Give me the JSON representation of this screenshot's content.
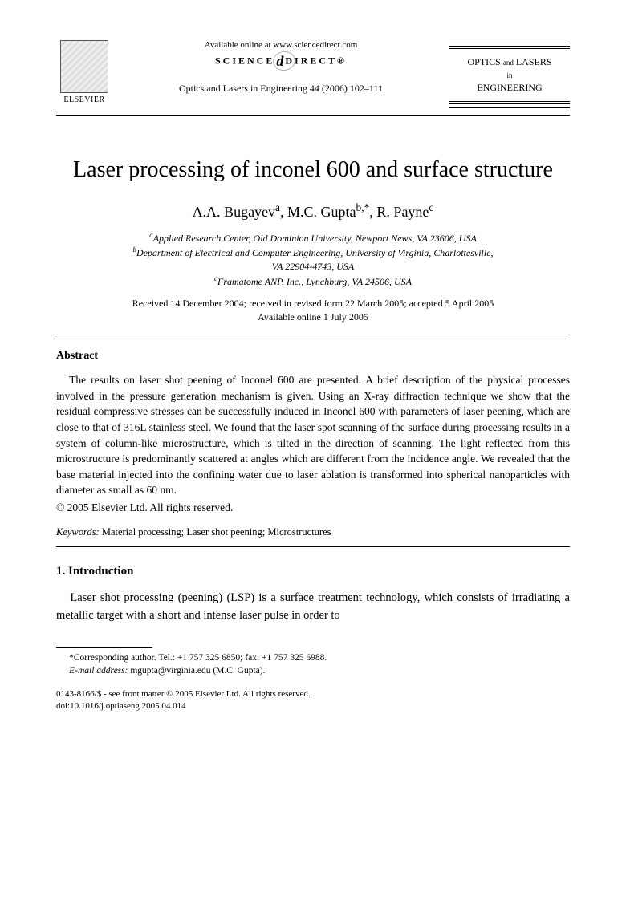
{
  "header": {
    "publisher": "ELSEVIER",
    "available_online": "Available online at www.sciencedirect.com",
    "science_direct_left": "SCIENCE",
    "science_direct_right": "DIRECT®",
    "journal_ref": "Optics and Lasers in Engineering 44 (2006) 102–111",
    "journal_box_line1": "OPTICS",
    "journal_box_and": "and",
    "journal_box_line1b": "LASERS",
    "journal_box_in": "in",
    "journal_box_line2": "ENGINEERING"
  },
  "title": "Laser processing of inconel 600 and surface structure",
  "authors_html": "A.A. Bugayev<sup>a</sup>, M.C. Gupta<sup>b,*</sup>, R. Payne<sup>c</sup>",
  "authors_plain": "A.A. Bugayeva, M.C. Guptab,*, R. Paynec",
  "affiliations": {
    "a": "aApplied Research Center, Old Dominion University, Newport News, VA 23606, USA",
    "b": "bDepartment of Electrical and Computer Engineering, University of Virginia, Charlottesville, VA 22904-4743, USA",
    "c": "cFramatome ANP, Inc., Lynchburg, VA 24506, USA"
  },
  "dates": {
    "received": "Received 14 December 2004; received in revised form 22 March 2005; accepted 5 April 2005",
    "online": "Available online 1 July 2005"
  },
  "abstract": {
    "heading": "Abstract",
    "body": "The results on laser shot peening of Inconel 600 are presented. A brief description of the physical processes involved in the pressure generation mechanism is given. Using an X-ray diffraction technique we show that the residual compressive stresses can be successfully induced in Inconel 600 with parameters of laser peening, which are close to that of 316L stainless steel. We found that the laser spot scanning of the surface during processing results in a system of column-like microstructure, which is tilted in the direction of scanning. The light reflected from this microstructure is predominantly scattered at angles which are different from the incidence angle. We revealed that the base material injected into the confining water due to laser ablation is transformed into spherical nanoparticles with diameter as small as 60 nm.",
    "copyright": "© 2005 Elsevier Ltd. All rights reserved."
  },
  "keywords": {
    "label": "Keywords:",
    "text": " Material processing; Laser shot peening; Microstructures"
  },
  "section1": {
    "heading": "1. Introduction",
    "body": "Laser shot processing (peening) (LSP) is a surface treatment technology, which consists of irradiating a metallic target with a short and intense laser pulse in order to"
  },
  "footnote": {
    "corr": "*Corresponding author. Tel.: +1 757 325 6850; fax: +1 757 325 6988.",
    "email_label": "E-mail address:",
    "email": " mgupta@virginia.edu (M.C. Gupta)."
  },
  "doi": {
    "line1": "0143-8166/$ - see front matter © 2005 Elsevier Ltd. All rights reserved.",
    "line2": "doi:10.1016/j.optlaseng.2005.04.014"
  }
}
